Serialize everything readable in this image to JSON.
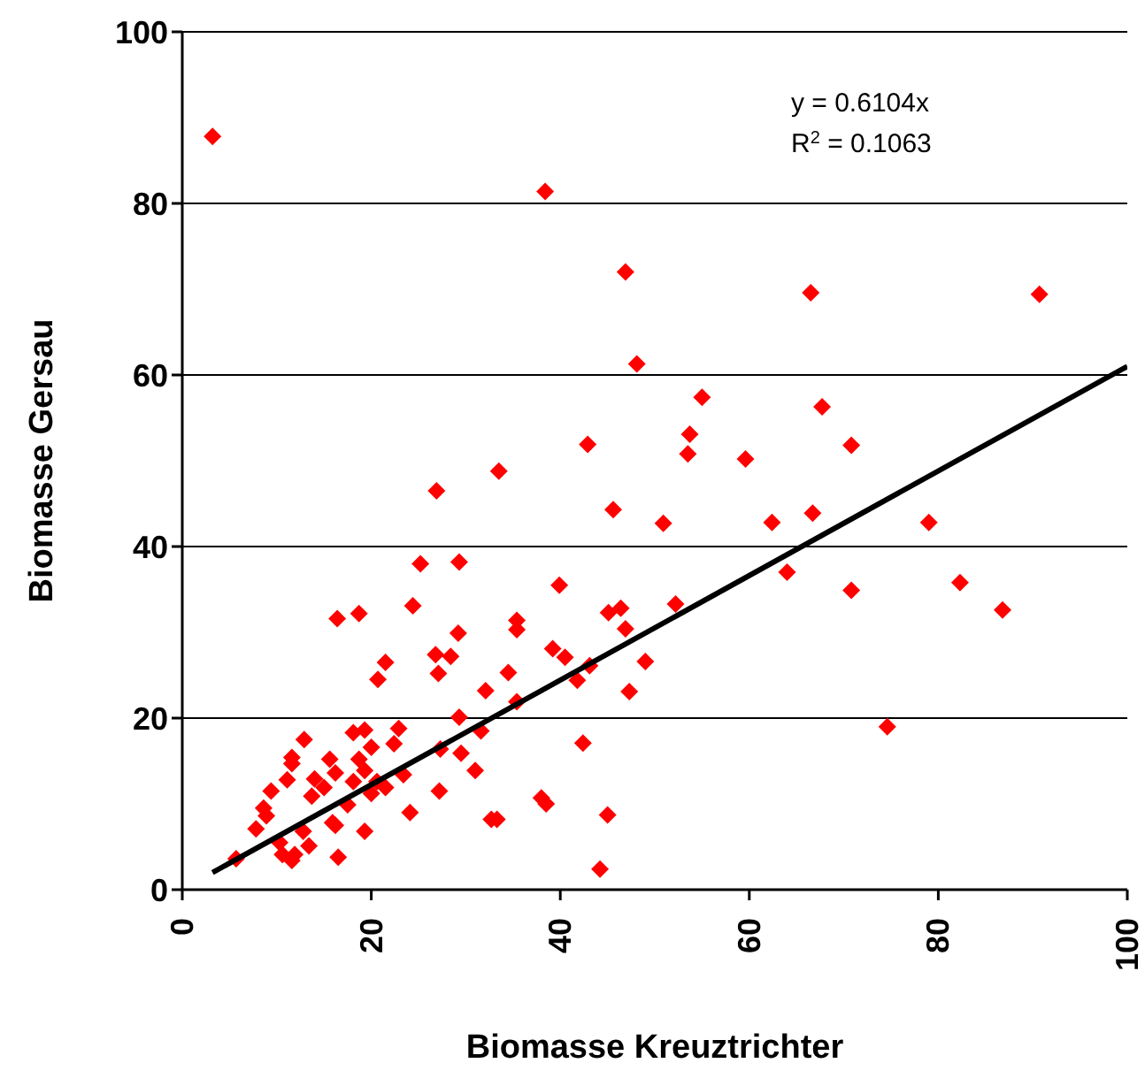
{
  "chart_data": {
    "type": "scatter",
    "xlabel": "Biomasse Kreuztrichter",
    "ylabel": "Biomasse Gersau",
    "annotations": [
      "y = 0.6104x",
      "R$^{2}$ = 0.1063"
    ],
    "xlim": [
      0,
      100
    ],
    "ylim": [
      0,
      100
    ],
    "xticks": [
      0,
      20,
      40,
      60,
      80,
      100
    ],
    "yticks": [
      0,
      20,
      40,
      60,
      80,
      100
    ],
    "grid": "y",
    "legend": false,
    "marker": "diamond",
    "series": [
      {
        "color": "#ff0000",
        "x": [
          3.2,
          38.4,
          46.9,
          66.5,
          90.7,
          48.1,
          55,
          67.7,
          53.7,
          42.9,
          70.8,
          53.5,
          59.6,
          33.5,
          26.9,
          45.6,
          66.7,
          62.4,
          79,
          50.9,
          64,
          82.3,
          70.8,
          86.8,
          74.6,
          39.9,
          35.4,
          35.4,
          45.1,
          46.4,
          46.9,
          52.2,
          39.2,
          40.5,
          43.1,
          41.8,
          49,
          47.3,
          34.5,
          35.4,
          42.4,
          38,
          38.5,
          33.3,
          45,
          44.2,
          25.2,
          29.3,
          16.4,
          18.7,
          24.4,
          29.2,
          26.8,
          28.4,
          27.1,
          21.5,
          20.7,
          32.1,
          29.3,
          31.6,
          22.9,
          22.4,
          12.9,
          11.6,
          11.6,
          11.1,
          9.4,
          8.6,
          8.9,
          7.8,
          5.7,
          10.3,
          10.6,
          11.6,
          11.9,
          12.8,
          13.4,
          16.2,
          16.5,
          19.3,
          14,
          13.7,
          15.6,
          16.2,
          15,
          18.1,
          19.3,
          20,
          18.7,
          19.3,
          18.1,
          20.6,
          17.5,
          20,
          21.5,
          23.4,
          15.9,
          27.2,
          24.1,
          29.5,
          31,
          32.7,
          27.3
        ],
        "values": [
          87.8,
          81.4,
          72,
          69.6,
          69.4,
          61.3,
          57.4,
          56.3,
          53.1,
          51.9,
          51.8,
          50.8,
          50.2,
          48.8,
          46.5,
          44.3,
          43.9,
          42.8,
          42.8,
          42.7,
          37,
          35.8,
          34.9,
          32.6,
          19,
          35.5,
          31.4,
          30.3,
          32.3,
          32.8,
          30.4,
          33.3,
          28.1,
          27.1,
          26.1,
          24.4,
          26.6,
          23.1,
          25.3,
          21.9,
          17.1,
          10.7,
          10,
          8.2,
          8.7,
          2.4,
          38,
          38.2,
          31.6,
          32.2,
          33.1,
          29.9,
          27.4,
          27.2,
          25.2,
          26.5,
          24.5,
          23.2,
          20.1,
          18.5,
          18.8,
          17,
          17.5,
          15.4,
          14.7,
          12.8,
          11.5,
          9.5,
          8.6,
          7.1,
          3.6,
          5.5,
          4.1,
          3.4,
          4.1,
          6.8,
          5.1,
          7.5,
          3.8,
          6.8,
          12.9,
          10.9,
          15.2,
          13.6,
          11.9,
          18.3,
          18.6,
          16.6,
          15.2,
          13.9,
          12.6,
          12.6,
          9.9,
          11.2,
          11.9,
          13.4,
          7.8,
          11.5,
          9,
          15.9,
          13.9,
          8.2,
          16.4
        ]
      },
      {
        "type": "line",
        "color": "#000000",
        "marker": "none",
        "x": [
          3.2,
          100
        ],
        "values": [
          2,
          61
        ]
      }
    ]
  }
}
